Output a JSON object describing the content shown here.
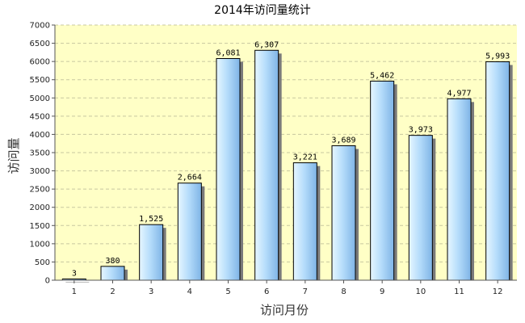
{
  "chart_data": {
    "type": "bar",
    "title": "2014年访问量统计",
    "xlabel": "访问月份",
    "ylabel": "访问量",
    "categories": [
      "1",
      "2",
      "3",
      "4",
      "5",
      "6",
      "7",
      "8",
      "9",
      "10",
      "11",
      "12"
    ],
    "values": [
      3,
      380,
      1525,
      2664,
      6081,
      6307,
      3221,
      3689,
      5462,
      3973,
      4977,
      5993
    ],
    "data_labels": [
      "3",
      "380",
      "1,525",
      "2,664",
      "6,081",
      "6,307",
      "3,221",
      "3,689",
      "5,462",
      "3,973",
      "4,977",
      "5,993"
    ],
    "ylim": [
      0,
      7000
    ],
    "yticks": [
      0,
      500,
      1000,
      1500,
      2000,
      2500,
      3000,
      3500,
      4000,
      4500,
      5000,
      5500,
      6000,
      6500,
      7000
    ],
    "grid": true,
    "legend": "none",
    "colors": {
      "plot_background": "#ffffc6",
      "grid": "#c8c8a0",
      "bar_light": "#e6f6ff",
      "bar_mid": "#b6ddfb",
      "bar_dark": "#7fb4e6",
      "bar_edge": "#000000",
      "shadow": "#7a7a7a"
    }
  }
}
